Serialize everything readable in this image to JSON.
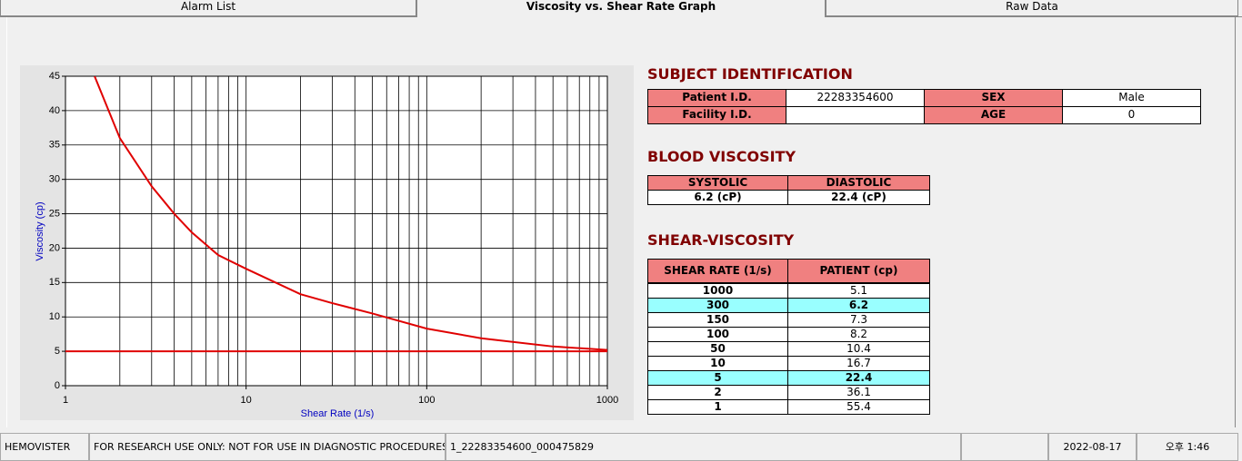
{
  "tabs": [
    "Alarm List",
    "Viscosity vs. Shear Rate Graph",
    "Raw Data"
  ],
  "chart_data": {
    "type": "line",
    "xlabel": "Shear Rate (1/s)",
    "ylabel": "Viscosity (cp)",
    "xlog": true,
    "xlim": [
      1,
      1000
    ],
    "xticks": [
      1,
      10,
      100,
      1000
    ],
    "ylim": [
      0,
      45
    ],
    "yticks": [
      0,
      5,
      10,
      15,
      20,
      25,
      30,
      35,
      40,
      45
    ],
    "grid": true,
    "series": [
      {
        "color": "#e00000",
        "x": [
          1.45,
          2,
          3,
          4,
          5,
          7,
          10,
          20,
          30,
          50,
          100,
          200,
          500,
          1000
        ],
        "values": [
          45,
          36,
          29,
          25,
          22.3,
          19,
          17,
          13.3,
          12,
          10.5,
          8.3,
          6.9,
          5.7,
          5.2
        ]
      },
      {
        "color": "#e00000",
        "x": [
          1,
          1000
        ],
        "values": [
          5,
          5
        ]
      }
    ]
  },
  "subject": {
    "title": "SUBJECT IDENTIFICATION",
    "rows": [
      [
        "Patient I.D.",
        "22283354600",
        "SEX",
        "Male"
      ],
      [
        "Facility I.D.",
        null,
        "AGE",
        0
      ]
    ]
  },
  "blood": {
    "title": "BLOOD VISCOSITY",
    "headers": [
      "SYSTOLIC",
      "DIASTOLIC"
    ],
    "values": [
      "6.2 (cP)",
      "22.4 (cP)"
    ]
  },
  "shear": {
    "title": "SHEAR-VISCOSITY",
    "headers": [
      "SHEAR RATE (1/s)",
      "PATIENT (cp)"
    ],
    "rows": [
      [
        1000,
        5.1
      ],
      [
        300,
        6.2
      ],
      [
        150,
        7.3
      ],
      [
        100,
        8.2
      ],
      [
        50,
        10.4
      ],
      [
        10,
        16.7
      ],
      [
        5,
        22.4
      ],
      [
        2,
        36.1
      ],
      [
        1,
        55.4
      ]
    ],
    "highlight_rows": [
      1,
      6
    ],
    "highlight_color": "#99ffff"
  },
  "status": [
    "HEMOVISTER",
    "FOR RESEARCH USE ONLY: NOT FOR USE IN DIAGNOSTIC PROCEDURES",
    "1_22283354600_000475829",
    "2022-08-17",
    "오후 1:46"
  ]
}
